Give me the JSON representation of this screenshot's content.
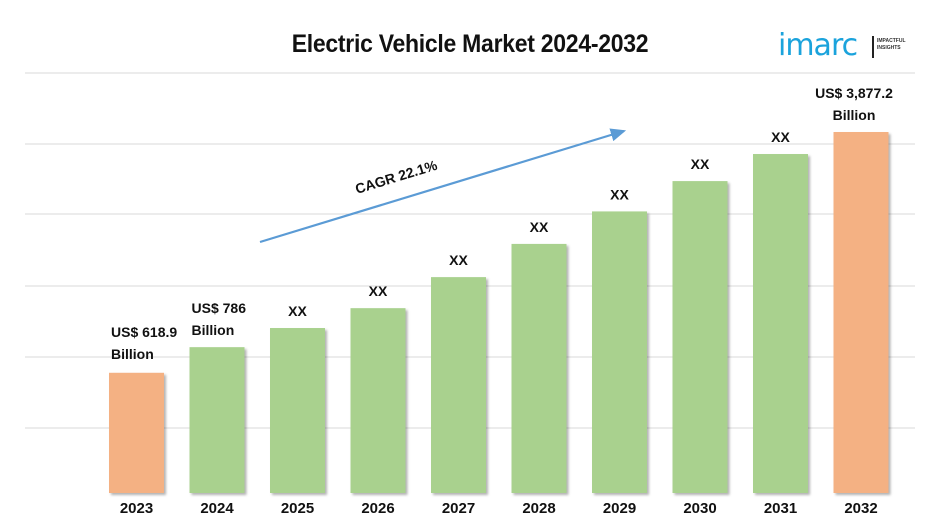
{
  "header": {
    "title": "Electric Vehicle Market 2024-2032",
    "logo_text": "imarc",
    "logo_tagline_1": "IMPACTFUL",
    "logo_tagline_2": "INSIGHTS"
  },
  "colors": {
    "historic_bar": "#f4b183",
    "forecast_bar": "#a9d18e",
    "arrow": "#5b9bd5",
    "gridline": "#d9d9d9",
    "logo": "#1ba3dc"
  },
  "chart_data": {
    "type": "bar",
    "title": "Electric Vehicle Market 2024-2032",
    "xlabel": "",
    "ylabel": "",
    "unit": "US$ Billion",
    "grid": true,
    "y_axis_visible": false,
    "categories": [
      "2023",
      "2024",
      "2025",
      "2026",
      "2027",
      "2028",
      "2029",
      "2030",
      "2031",
      "2032"
    ],
    "values": [
      618.9,
      786,
      null,
      null,
      null,
      null,
      null,
      null,
      null,
      3877.2
    ],
    "display_heights_relative": [
      0.333,
      0.404,
      0.457,
      0.512,
      0.598,
      0.69,
      0.78,
      0.864,
      0.939,
      1.0
    ],
    "bar_types": [
      "historic",
      "forecast",
      "forecast",
      "forecast",
      "forecast",
      "forecast",
      "forecast",
      "forecast",
      "forecast",
      "historic"
    ],
    "data_labels": [
      [
        "US$ 618.9",
        "Billion"
      ],
      [
        "US$ 786",
        "Billion"
      ],
      [
        "XX"
      ],
      [
        "XX"
      ],
      [
        "XX"
      ],
      [
        "XX"
      ],
      [
        "XX"
      ],
      [
        "XX"
      ],
      [
        "XX"
      ],
      [
        "US$ 3,877.2",
        "Billion"
      ]
    ],
    "annotation": "CAGR 22.1%",
    "gridline_count": 6
  }
}
